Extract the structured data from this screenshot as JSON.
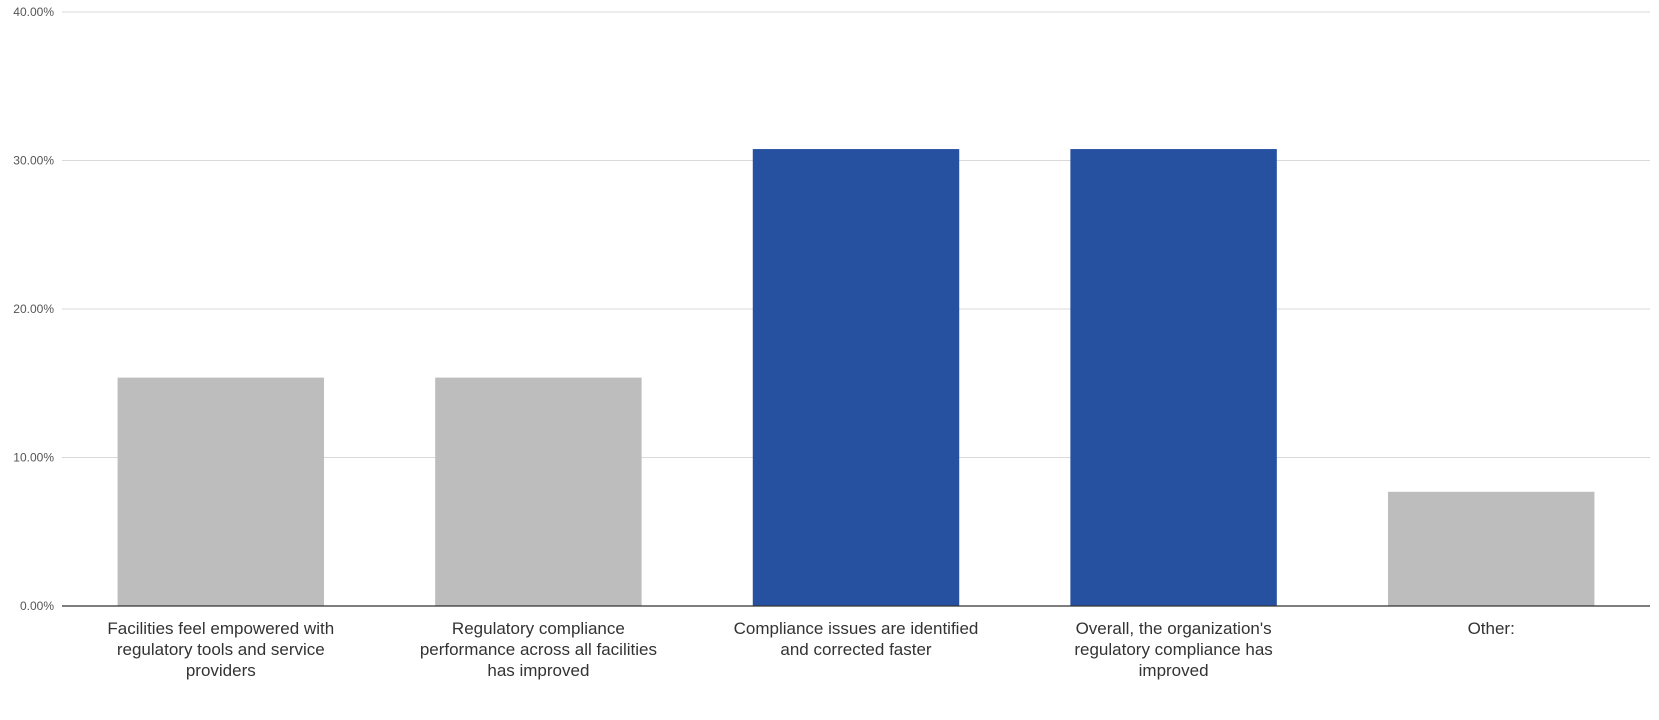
{
  "chart_data": {
    "type": "bar",
    "categories": [
      "Facilities feel empowered with regulatory tools and service providers",
      "Regulatory compliance performance across all facilities has improved",
      "Compliance issues are identified and corrected faster",
      "Overall, the organization's regulatory compliance has improved",
      "Other:"
    ],
    "category_lines": [
      [
        "Facilities feel empowered with",
        "regulatory tools and service",
        "providers"
      ],
      [
        "Regulatory compliance",
        "performance across all facilities",
        "has improved"
      ],
      [
        "Compliance issues are identified",
        "and corrected faster"
      ],
      [
        "Overall, the organization's",
        "regulatory compliance has",
        "improved"
      ],
      [
        "Other:"
      ]
    ],
    "values": [
      15.38,
      15.38,
      30.77,
      30.77,
      7.69
    ],
    "ylim": [
      0,
      40
    ],
    "yticks": [
      0,
      10,
      20,
      30,
      40
    ],
    "ytick_labels": [
      "0.00%",
      "10.00%",
      "20.00%",
      "30.00%",
      "40.00%"
    ],
    "title": "",
    "xlabel": "",
    "ylabel": "",
    "grid": true,
    "legend": "none",
    "colors": {
      "highlight": "#2650a0",
      "default": "#bdbdbd",
      "gridline": "#d9d9d9",
      "axis": "#333333"
    },
    "highlighted": [
      false,
      false,
      true,
      true,
      false
    ]
  }
}
